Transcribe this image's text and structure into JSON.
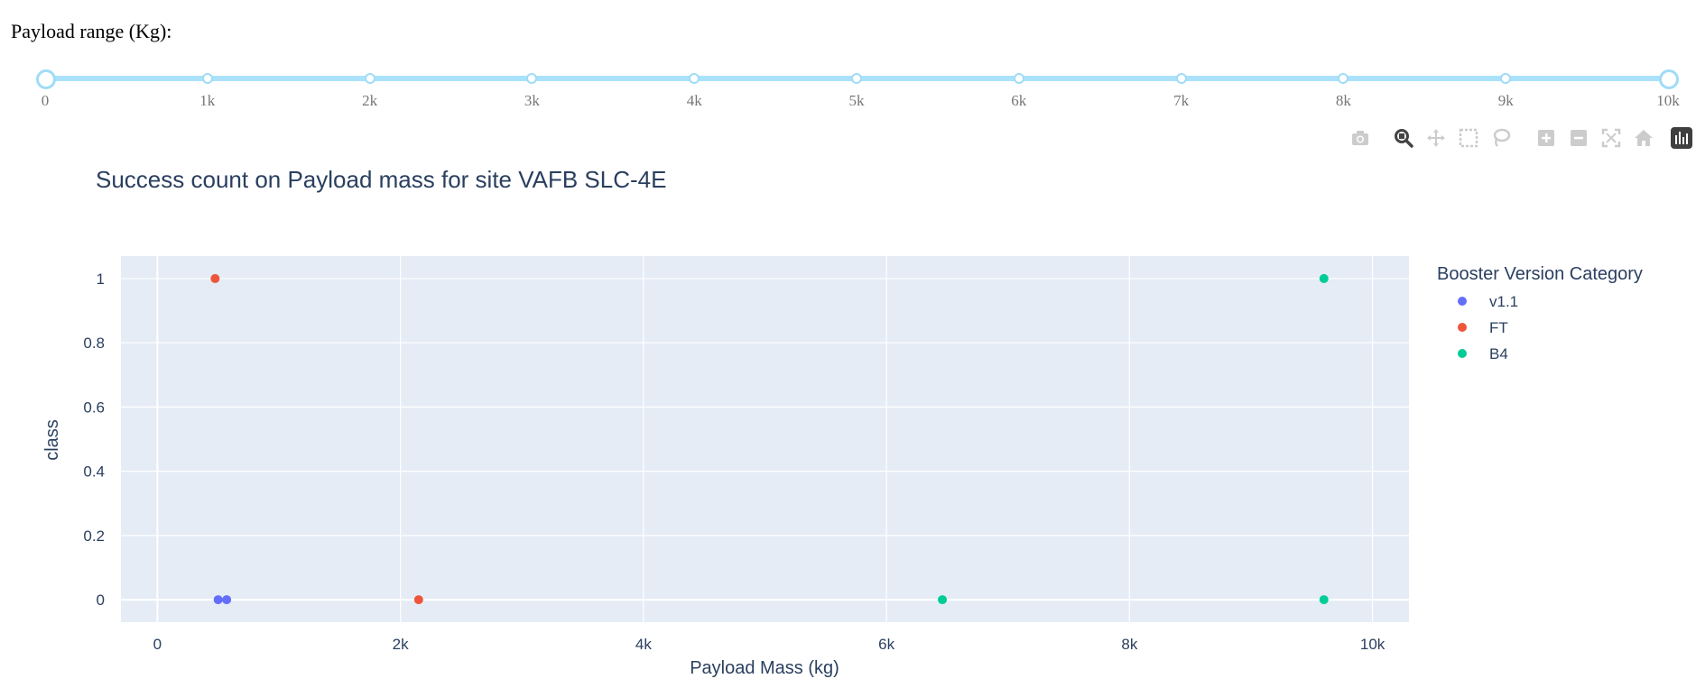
{
  "slider": {
    "label": "Payload range (Kg):",
    "min": 0,
    "max": 10000,
    "value_low": 0,
    "value_high": 10000,
    "marks": [
      {
        "value": 0,
        "label": "0"
      },
      {
        "value": 1000,
        "label": "1k"
      },
      {
        "value": 2000,
        "label": "2k"
      },
      {
        "value": 3000,
        "label": "3k"
      },
      {
        "value": 4000,
        "label": "4k"
      },
      {
        "value": 5000,
        "label": "5k"
      },
      {
        "value": 6000,
        "label": "6k"
      },
      {
        "value": 7000,
        "label": "7k"
      },
      {
        "value": 8000,
        "label": "8k"
      },
      {
        "value": 9000,
        "label": "9k"
      },
      {
        "value": 10000,
        "label": "10k"
      }
    ],
    "color": "#abe2fb"
  },
  "modebar": {
    "buttons": [
      {
        "name": "camera-icon",
        "title": "Download plot as a png",
        "active": false
      },
      {
        "name": "zoom-icon",
        "title": "Zoom",
        "active": true
      },
      {
        "name": "pan-icon",
        "title": "Pan",
        "active": false
      },
      {
        "name": "box-select-icon",
        "title": "Box Select",
        "active": false
      },
      {
        "name": "lasso-select-icon",
        "title": "Lasso Select",
        "active": false
      },
      {
        "name": "zoom-in-icon",
        "title": "Zoom in",
        "active": false
      },
      {
        "name": "zoom-out-icon",
        "title": "Zoom out",
        "active": false
      },
      {
        "name": "autoscale-icon",
        "title": "Autoscale",
        "active": false
      },
      {
        "name": "reset-axes-icon",
        "title": "Reset axes",
        "active": false
      },
      {
        "name": "plotly-logo-icon",
        "title": "Produced with Plotly",
        "active": false
      }
    ]
  },
  "chart_data": {
    "type": "scatter",
    "title": "Success count on Payload mass for site VAFB SLC-4E",
    "xlabel": "Payload Mass (kg)",
    "ylabel": "class",
    "xlim": [
      -300,
      10300
    ],
    "ylim": [
      -0.07,
      1.07
    ],
    "xticks": [
      {
        "value": 0,
        "label": "0"
      },
      {
        "value": 2000,
        "label": "2k"
      },
      {
        "value": 4000,
        "label": "4k"
      },
      {
        "value": 6000,
        "label": "6k"
      },
      {
        "value": 8000,
        "label": "8k"
      },
      {
        "value": 10000,
        "label": "10k"
      }
    ],
    "yticks": [
      {
        "value": 0,
        "label": "0"
      },
      {
        "value": 0.2,
        "label": "0.2"
      },
      {
        "value": 0.4,
        "label": "0.4"
      },
      {
        "value": 0.6,
        "label": "0.6"
      },
      {
        "value": 0.8,
        "label": "0.8"
      },
      {
        "value": 1,
        "label": "1"
      }
    ],
    "grid": true,
    "legend_title": "Booster Version Category",
    "legend_position": "top-right",
    "plot_bg": "#e5ecf6",
    "series": [
      {
        "name": "v1.1",
        "color": "#636efa",
        "points": [
          [
            500,
            0
          ],
          [
            570,
            0
          ]
        ]
      },
      {
        "name": "FT",
        "color": "#ef553b",
        "points": [
          [
            475,
            1
          ],
          [
            2150,
            0
          ]
        ]
      },
      {
        "name": "B4",
        "color": "#00cc96",
        "points": [
          [
            6460,
            0
          ],
          [
            9600,
            1
          ],
          [
            9600,
            0
          ]
        ]
      }
    ]
  }
}
